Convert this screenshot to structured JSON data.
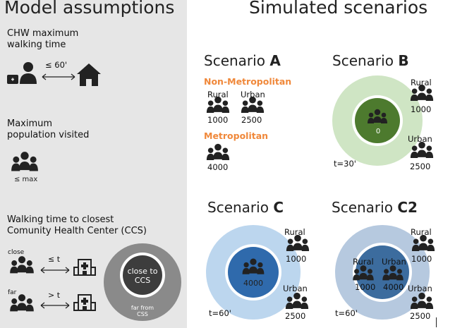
{
  "left": {
    "title": "Model assumptions",
    "walking_label_1": "CHW maximum",
    "walking_label_2": "walking time",
    "walking_value": "≤ 60'",
    "population_label_1": "Maximum",
    "population_label_2": "population visited",
    "population_value": "≤ max",
    "ccs_label_1": "Walking time to closest",
    "ccs_label_2": "Comunity Health Center (CCS)",
    "close_label": "close",
    "close_time": "≤ t",
    "far_label": "far",
    "far_time": "> t",
    "inner_circle_1": "close to",
    "inner_circle_2": "CCS",
    "outer_circle_1": "far from",
    "outer_circle_2": "CSS"
  },
  "right": {
    "title": "Simulated scenarios",
    "scenario_a": {
      "prefix": "Scenario ",
      "letter": "A",
      "non_metro": "Non-Metropolitan",
      "rural": "Rural",
      "urban": "Urban",
      "rural_value": "1000",
      "urban_value": "2500",
      "metro": "Metropolitan",
      "metro_value": "4000"
    },
    "scenario_b": {
      "prefix": "Scenario ",
      "letter": "B",
      "center_value": "0",
      "rural": "Rural",
      "rural_value": "1000",
      "urban": "Urban",
      "urban_value": "2500",
      "t": "t=30'"
    },
    "scenario_c": {
      "prefix": "Scenario ",
      "letter": "C",
      "center_value": "4000",
      "rural": "Rural",
      "rural_value": "1000",
      "urban": "Urban",
      "urban_value": "2500",
      "t": "t=60'"
    },
    "scenario_c2": {
      "prefix": "Scenario ",
      "letter": "C2",
      "inner_rural": "Rural",
      "inner_rural_value": "1000",
      "inner_urban": "Urban",
      "inner_urban_value": "4000",
      "rural": "Rural",
      "rural_value": "1000",
      "urban": "Urban",
      "urban_value": "2500",
      "t": "t=60'"
    }
  },
  "colors": {
    "panel_bg": "#e6e6e6",
    "orange": "#f0883a",
    "b_outer": "#cfe5c4",
    "b_inner": "#4d7a2e",
    "c_outer": "#bcd6ee",
    "c_inner": "#2f6aac",
    "c2_outer": "#b6c9df",
    "c2_inner": "#3c6c9e",
    "ccs_outer": "#8a8a8a",
    "ccs_inner": "#3d3d3d"
  }
}
